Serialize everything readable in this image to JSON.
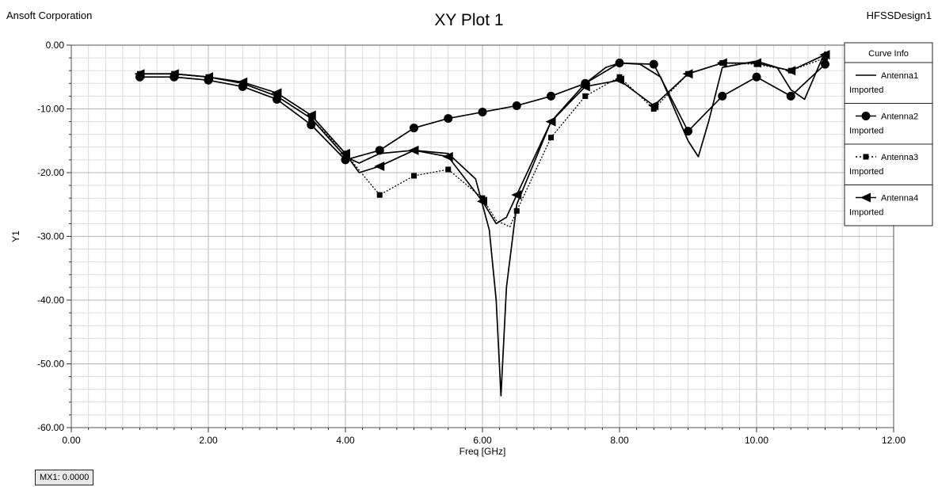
{
  "header": {
    "company": "Ansoft Corporation",
    "title": "XY Plot 1",
    "design": "HFSSDesign1"
  },
  "marker": {
    "label": "MX1: 0.0000"
  },
  "chart_data": {
    "type": "line",
    "title": "XY Plot 1",
    "xlabel": "Freq [GHz]",
    "ylabel": "Y1",
    "xlim": [
      0,
      12
    ],
    "ylim": [
      -60,
      0
    ],
    "x_ticks": [
      0,
      2,
      4,
      6,
      8,
      10,
      12
    ],
    "x_tick_labels": [
      "0.00",
      "2.00",
      "4.00",
      "6.00",
      "8.00",
      "10.00",
      "12.00"
    ],
    "y_ticks": [
      0,
      -10,
      -20,
      -30,
      -40,
      -50,
      -60
    ],
    "y_tick_labels": [
      "0.00",
      "-10.00",
      "-20.00",
      "-30.00",
      "-40.00",
      "-50.00",
      "-60.00"
    ],
    "grid": true,
    "legend": {
      "title": "Curve Info",
      "placement": "top-right",
      "entries": [
        {
          "name": "Antenna1",
          "sub": "Imported"
        },
        {
          "name": "Antenna2",
          "sub": "Imported"
        },
        {
          "name": "Antenna3",
          "sub": "Imported"
        },
        {
          "name": "Antenna4",
          "sub": "Imported"
        }
      ]
    },
    "series": [
      {
        "name": "Antenna1",
        "style": "solid",
        "marker": "none",
        "x": [
          1.0,
          1.5,
          2.0,
          2.5,
          3.0,
          3.5,
          4.0,
          4.2,
          4.5,
          5.0,
          5.5,
          5.9,
          6.1,
          6.2,
          6.27,
          6.35,
          6.5,
          7.0,
          7.5,
          7.8,
          8.0,
          8.3,
          8.6,
          8.8,
          9.0,
          9.15,
          9.3,
          9.5,
          10.0,
          10.3,
          10.5,
          10.7,
          11.0
        ],
        "y": [
          -4.5,
          -4.5,
          -5.0,
          -6.0,
          -8.0,
          -11.5,
          -17.5,
          -18.5,
          -17.0,
          -16.5,
          -17.0,
          -21.0,
          -29.0,
          -40.0,
          -55.0,
          -38.0,
          -25.0,
          -12.0,
          -6.0,
          -3.5,
          -2.8,
          -3.0,
          -5.0,
          -10.0,
          -15.0,
          -17.5,
          -12.0,
          -3.5,
          -2.5,
          -3.5,
          -7.0,
          -8.5,
          -1.0
        ]
      },
      {
        "name": "Antenna2",
        "style": "solid",
        "marker": "circle",
        "x": [
          1.0,
          1.5,
          2.0,
          2.5,
          3.0,
          3.5,
          4.0,
          4.5,
          5.0,
          5.5,
          6.0,
          6.5,
          7.0,
          7.5,
          8.0,
          8.5,
          9.0,
          9.5,
          10.0,
          10.5,
          11.0
        ],
        "y": [
          -5.0,
          -5.0,
          -5.5,
          -6.5,
          -8.5,
          -12.5,
          -18.0,
          -16.5,
          -13.0,
          -11.5,
          -10.5,
          -9.5,
          -8.0,
          -6.0,
          -2.8,
          -3.0,
          -13.5,
          -8.0,
          -5.0,
          -8.0,
          -3.0
        ],
        "marker_x": [
          1.0,
          1.5,
          2.0,
          2.5,
          3.0,
          3.5,
          4.0,
          4.5,
          5.0,
          5.5,
          6.0,
          6.5,
          7.0,
          7.5,
          8.0,
          8.5,
          9.0,
          9.5,
          10.0,
          10.5,
          11.0
        ],
        "marker_y": [
          -5.0,
          -5.0,
          -5.5,
          -6.5,
          -8.5,
          -12.5,
          -18.0,
          -16.5,
          -13.0,
          -11.5,
          -10.5,
          -9.5,
          -8.0,
          -6.0,
          -2.8,
          -3.0,
          -13.5,
          -8.0,
          -5.0,
          -8.0,
          -3.0
        ]
      },
      {
        "name": "Antenna3",
        "style": "dotted",
        "marker": "square",
        "x": [
          1.0,
          1.5,
          2.0,
          2.5,
          3.0,
          3.5,
          4.0,
          4.5,
          5.0,
          5.5,
          6.0,
          6.2,
          6.4,
          6.5,
          7.0,
          7.5,
          8.0,
          8.5,
          9.0,
          9.5,
          10.0,
          10.5,
          11.0
        ],
        "y": [
          -4.5,
          -4.5,
          -5.0,
          -6.0,
          -8.0,
          -11.5,
          -17.0,
          -23.5,
          -20.5,
          -19.5,
          -24.0,
          -27.5,
          -28.5,
          -26.0,
          -14.5,
          -8.0,
          -5.0,
          -10.0,
          -4.5,
          -2.8,
          -3.0,
          -4.0,
          -2.0
        ],
        "marker_x": [
          1.0,
          1.5,
          2.0,
          2.5,
          3.0,
          3.5,
          4.0,
          4.5,
          5.0,
          5.5,
          6.0,
          6.5,
          7.0,
          7.5,
          8.0,
          8.5,
          9.0,
          9.5,
          10.0,
          10.5,
          11.0
        ],
        "marker_y": [
          -4.5,
          -4.5,
          -5.0,
          -6.0,
          -8.0,
          -11.5,
          -17.0,
          -23.5,
          -20.5,
          -19.5,
          -24.0,
          -26.0,
          -14.5,
          -8.0,
          -5.0,
          -10.0,
          -4.5,
          -2.8,
          -3.0,
          -4.0,
          -2.0
        ]
      },
      {
        "name": "Antenna4",
        "style": "solid",
        "marker": "triangle-left",
        "x": [
          1.0,
          1.5,
          2.0,
          2.5,
          3.0,
          3.5,
          4.0,
          4.2,
          4.5,
          5.0,
          5.5,
          6.0,
          6.2,
          6.35,
          6.5,
          7.0,
          7.5,
          8.0,
          8.5,
          9.0,
          9.5,
          10.0,
          10.5,
          11.0
        ],
        "y": [
          -4.5,
          -4.5,
          -5.0,
          -5.8,
          -7.5,
          -11.0,
          -17.0,
          -20.0,
          -19.0,
          -16.5,
          -17.5,
          -24.5,
          -28.0,
          -27.0,
          -23.5,
          -12.0,
          -6.5,
          -5.5,
          -9.5,
          -4.5,
          -2.8,
          -2.8,
          -4.0,
          -1.5
        ],
        "marker_x": [
          1.0,
          1.5,
          2.0,
          2.5,
          3.0,
          3.5,
          4.0,
          4.5,
          5.0,
          5.5,
          6.0,
          6.5,
          7.0,
          7.5,
          8.0,
          8.5,
          9.0,
          9.5,
          10.0,
          10.5,
          11.0
        ],
        "marker_y": [
          -4.5,
          -4.5,
          -5.0,
          -5.8,
          -7.5,
          -11.0,
          -17.0,
          -19.0,
          -16.5,
          -17.5,
          -24.5,
          -23.5,
          -12.0,
          -6.5,
          -5.5,
          -9.5,
          -4.5,
          -2.8,
          -2.8,
          -4.0,
          -1.5
        ]
      }
    ]
  }
}
